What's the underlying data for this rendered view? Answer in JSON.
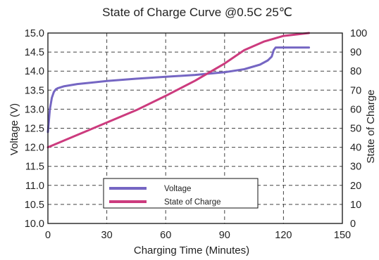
{
  "chart_data": {
    "type": "line",
    "title": "State of Charge Curve @0.5C 25℃",
    "xlabel": "Charging Time (Minutes)",
    "ylabel": "Voltage (V)",
    "y2label": "State of Charge",
    "xlim": [
      0,
      150
    ],
    "ylim": [
      10.0,
      15.0
    ],
    "y2lim": [
      0,
      100
    ],
    "xticks": [
      "0",
      "30",
      "60",
      "90",
      "120",
      "150"
    ],
    "yticks": [
      "10.0",
      "10.5",
      "11.0",
      "11.5",
      "12.0",
      "12.5",
      "13.0",
      "13.5",
      "14.0",
      "14.5",
      "15.0"
    ],
    "y2ticks": [
      "0",
      "10",
      "20",
      "30",
      "40",
      "50",
      "60",
      "70",
      "80",
      "90",
      "100"
    ],
    "grid": true,
    "legend_position": "bottom-center",
    "series": [
      {
        "name": "Voltage",
        "axis": "left",
        "color": "#7566c3",
        "x": [
          0,
          0.5,
          1,
          2,
          3,
          4,
          5,
          8,
          15,
          30,
          45,
          60,
          75,
          90,
          100,
          108,
          112,
          114,
          115,
          116,
          125,
          133
        ],
        "y": [
          12.4,
          12.7,
          13.0,
          13.3,
          13.45,
          13.52,
          13.55,
          13.6,
          13.66,
          13.74,
          13.8,
          13.85,
          13.9,
          13.97,
          14.05,
          14.17,
          14.28,
          14.38,
          14.55,
          14.62,
          14.62,
          14.62
        ]
      },
      {
        "name": "State of Charge",
        "axis": "right",
        "color": "#cc3b7e",
        "x": [
          0,
          15,
          30,
          45,
          60,
          75,
          90,
          100,
          110,
          120,
          133
        ],
        "y": [
          40,
          46.5,
          53,
          59.5,
          67,
          75,
          84,
          91,
          95.5,
          98.5,
          100
        ]
      }
    ]
  }
}
